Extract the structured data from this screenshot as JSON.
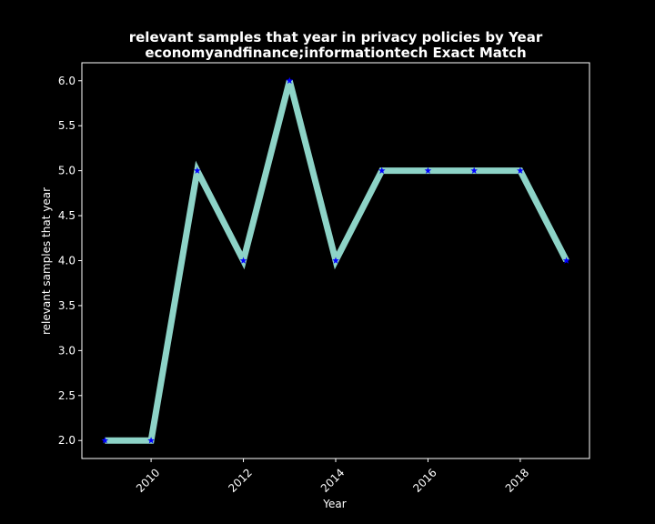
{
  "chart_data": {
    "type": "line",
    "title_line1": "relevant samples that year in privacy policies by Year",
    "title_line2": "economyandfinance;informationtech Exact Match",
    "xlabel": "Year",
    "ylabel": "relevant samples that year",
    "x": [
      2009,
      2010,
      2011,
      2012,
      2013,
      2014,
      2015,
      2016,
      2017,
      2018,
      2019
    ],
    "series": [
      {
        "values": [
          2,
          2,
          5,
          4,
          6,
          4,
          5,
          5,
          5,
          5,
          4
        ]
      }
    ],
    "xlim": [
      2008.5,
      2019.5
    ],
    "ylim": [
      1.8,
      6.2
    ],
    "xticks": [
      2010,
      2012,
      2014,
      2016,
      2018
    ],
    "xtick_labels": [
      "2010",
      "2012",
      "2014",
      "2016",
      "2018"
    ],
    "yticks": [
      2.0,
      2.5,
      3.0,
      3.5,
      4.0,
      4.5,
      5.0,
      5.5,
      6.0
    ],
    "ytick_labels": [
      "2.0",
      "2.5",
      "3.0",
      "3.5",
      "4.0",
      "4.5",
      "5.0",
      "5.5",
      "6.0"
    ],
    "line_color": "#8dd3c7",
    "marker_color": "#0000ff",
    "marker": "star",
    "background": "#000000",
    "grid": false
  }
}
